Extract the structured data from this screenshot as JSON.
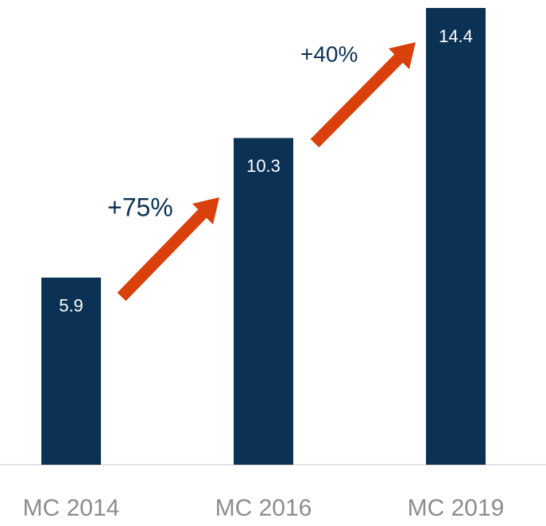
{
  "chart_data": {
    "type": "bar",
    "categories": [
      "MC 2014",
      "MC 2016",
      "MC 2019"
    ],
    "values": [
      5.9,
      10.3,
      14.4
    ],
    "color": "#0b3154",
    "annotations": [
      "+75%",
      "+40%"
    ]
  }
}
